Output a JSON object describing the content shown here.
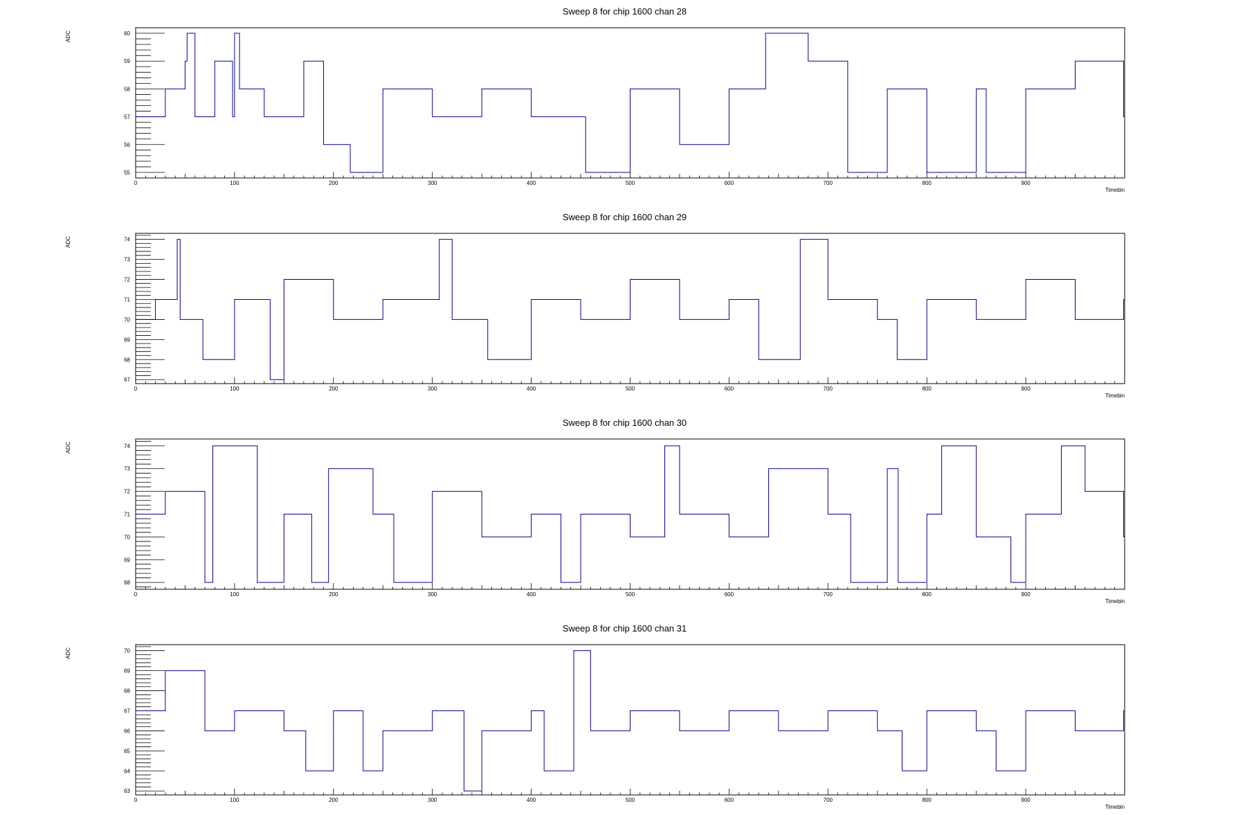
{
  "chart_data": [
    {
      "type": "line",
      "title": "Sweep 8 for chip 1600 chan 28",
      "xlabel": "Timebin",
      "ylabel": "ADC",
      "xlim": [
        0,
        1000
      ],
      "ylim": [
        54.8,
        60.2
      ],
      "xticks": [
        0,
        100,
        200,
        300,
        400,
        500,
        600,
        700,
        800,
        900
      ],
      "yticks": [
        55,
        56,
        57,
        58,
        59,
        60
      ],
      "grid": false,
      "series": [
        {
          "color": "#00008b",
          "x": [
            0,
            30,
            50,
            52,
            60,
            80,
            98,
            100,
            105,
            130,
            170,
            190,
            217,
            250,
            300,
            350,
            400,
            455,
            500,
            550,
            600,
            637,
            658,
            680,
            710,
            720,
            760,
            800,
            850,
            860,
            900,
            950,
            999
          ],
          "values": [
            57,
            58,
            59,
            60,
            57,
            59,
            57,
            60,
            58,
            57,
            59,
            56,
            55,
            58,
            57,
            58,
            57,
            55,
            58,
            56,
            58,
            60,
            60,
            59,
            59,
            55,
            58,
            55,
            58,
            55,
            58,
            59,
            57
          ]
        }
      ]
    },
    {
      "type": "line",
      "title": "Sweep 8 for chip 1600 chan 29",
      "xlabel": "Timebin",
      "ylabel": "ADC",
      "xlim": [
        0,
        1000
      ],
      "ylim": [
        66.8,
        74.3
      ],
      "xticks": [
        0,
        100,
        200,
        300,
        400,
        500,
        600,
        700,
        800,
        900
      ],
      "yticks": [
        67,
        68,
        69,
        70,
        71,
        72,
        73,
        74
      ],
      "grid": false,
      "series": [
        {
          "color": "#00008b",
          "x": [
            0,
            20,
            42,
            45,
            68,
            100,
            136,
            150,
            200,
            250,
            307,
            320,
            356,
            400,
            450,
            500,
            550,
            600,
            630,
            672,
            700,
            750,
            770,
            800,
            850,
            900,
            950,
            999
          ],
          "values": [
            70,
            71,
            74,
            70,
            68,
            71,
            67,
            72,
            70,
            71,
            74,
            70,
            68,
            71,
            70,
            72,
            70,
            71,
            68,
            74,
            71,
            70,
            68,
            71,
            70,
            72,
            70,
            71
          ]
        }
      ]
    },
    {
      "type": "line",
      "title": "Sweep 8 for chip 1600 chan 30",
      "xlabel": "Timebin",
      "ylabel": "ADC",
      "xlim": [
        0,
        1000
      ],
      "ylim": [
        67.7,
        74.3
      ],
      "xticks": [
        0,
        100,
        200,
        300,
        400,
        500,
        600,
        700,
        800,
        900
      ],
      "yticks": [
        68,
        69,
        70,
        71,
        72,
        73,
        74
      ],
      "grid": false,
      "series": [
        {
          "color": "#00008b",
          "x": [
            0,
            30,
            70,
            78,
            97,
            123,
            150,
            178,
            195,
            240,
            261,
            300,
            350,
            400,
            430,
            450,
            500,
            535,
            550,
            600,
            640,
            700,
            723,
            760,
            771,
            800,
            815,
            850,
            885,
            900,
            936,
            960,
            999
          ],
          "values": [
            71,
            72,
            68,
            74,
            74,
            68,
            71,
            68,
            73,
            71,
            68,
            72,
            70,
            71,
            68,
            71,
            70,
            74,
            71,
            70,
            73,
            71,
            68,
            73,
            68,
            71,
            74,
            70,
            68,
            71,
            74,
            72,
            70
          ]
        }
      ]
    },
    {
      "type": "line",
      "title": "Sweep 8 for chip 1600 chan 31",
      "xlabel": "Timebin",
      "ylabel": "ADC",
      "xlim": [
        0,
        1000
      ],
      "ylim": [
        62.8,
        70.3
      ],
      "xticks": [
        0,
        100,
        200,
        300,
        400,
        500,
        600,
        700,
        800,
        900
      ],
      "yticks": [
        63,
        64,
        65,
        66,
        67,
        68,
        69,
        70
      ],
      "grid": false,
      "series": [
        {
          "color": "#00008b",
          "x": [
            0,
            30,
            70,
            100,
            150,
            172,
            200,
            230,
            250,
            300,
            332,
            350,
            400,
            413,
            443,
            460,
            500,
            550,
            600,
            650,
            700,
            750,
            775,
            800,
            850,
            870,
            900,
            950,
            999
          ],
          "values": [
            67,
            69,
            66,
            67,
            66,
            64,
            67,
            64,
            66,
            67,
            63,
            66,
            67,
            64,
            70,
            66,
            67,
            66,
            67,
            66,
            67,
            66,
            64,
            67,
            66,
            64,
            67,
            66,
            67
          ]
        }
      ]
    }
  ]
}
